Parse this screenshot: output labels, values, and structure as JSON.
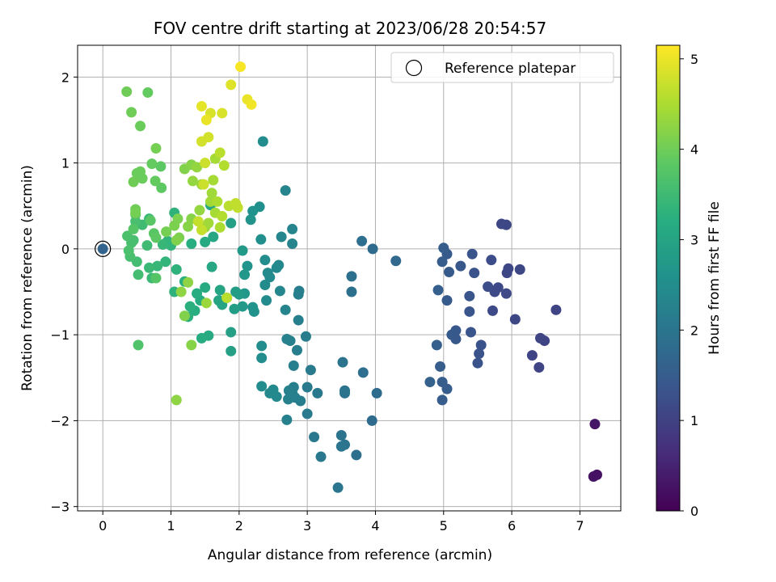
{
  "chart_data": {
    "type": "scatter",
    "title": "FOV centre drift starting at 2023/06/28 20:54:57",
    "xlabel": "Angular distance from reference (arcmin)",
    "ylabel": "Rotation from reference (arcmin)",
    "xlim": [
      -0.37,
      7.6
    ],
    "ylim": [
      -3.05,
      2.37
    ],
    "xticks": [
      0,
      1,
      2,
      3,
      4,
      5,
      6,
      7
    ],
    "yticks": [
      -3,
      -2,
      -1,
      0,
      1,
      2
    ],
    "grid": true,
    "legend": {
      "position": "top-right",
      "label": "Reference platepar"
    },
    "reference_point": {
      "x": 0,
      "y": 0
    },
    "colorbar": {
      "label": "Hours from first FF file",
      "min": 0,
      "max": 5.15,
      "ticks": [
        0,
        1,
        2,
        3,
        4,
        5
      ],
      "colormap": "viridis"
    },
    "points": [
      [
        7.2,
        -2.65,
        0.25
      ],
      [
        7.25,
        -2.63,
        0.25
      ],
      [
        7.22,
        -2.04,
        0.3
      ],
      [
        6.65,
        -0.71,
        1.05
      ],
      [
        6.48,
        -1.07,
        1.05
      ],
      [
        6.42,
        -1.04,
        1.05
      ],
      [
        6.4,
        -1.38,
        1.05
      ],
      [
        6.3,
        -1.24,
        1.05
      ],
      [
        6.12,
        -0.24,
        1.1
      ],
      [
        6.05,
        -0.82,
        1.1
      ],
      [
        5.95,
        -0.23,
        1.1
      ],
      [
        5.93,
        -0.28,
        1.1
      ],
      [
        5.92,
        -0.52,
        1.15
      ],
      [
        5.85,
        0.29,
        1.1
      ],
      [
        5.92,
        0.28,
        1.1
      ],
      [
        5.8,
        -0.45,
        1.15
      ],
      [
        5.75,
        -0.5,
        1.15
      ],
      [
        5.72,
        -0.72,
        1.15
      ],
      [
        5.7,
        -0.13,
        1.2
      ],
      [
        5.65,
        -0.44,
        1.2
      ],
      [
        5.55,
        -1.12,
        1.3
      ],
      [
        5.52,
        -1.22,
        1.3
      ],
      [
        5.5,
        -1.33,
        1.3
      ],
      [
        5.45,
        -0.28,
        1.3
      ],
      [
        5.42,
        -0.06,
        1.35
      ],
      [
        5.4,
        -0.97,
        1.35
      ],
      [
        5.38,
        -0.73,
        1.35
      ],
      [
        5.38,
        -0.55,
        1.35
      ],
      [
        5.25,
        -0.2,
        1.4
      ],
      [
        5.18,
        -0.95,
        1.4
      ],
      [
        5.18,
        -1.05,
        1.4
      ],
      [
        5.12,
        -1.0,
        1.45
      ],
      [
        5.08,
        -0.27,
        1.45
      ],
      [
        5.05,
        -0.6,
        1.45
      ],
      [
        5.05,
        -0.06,
        1.45
      ],
      [
        5.0,
        0.01,
        1.5
      ],
      [
        4.98,
        -0.15,
        1.5
      ],
      [
        5.05,
        -1.63,
        1.5
      ],
      [
        4.98,
        -1.55,
        1.5
      ],
      [
        4.98,
        -1.76,
        1.5
      ],
      [
        4.95,
        -1.37,
        1.5
      ],
      [
        4.92,
        -0.48,
        1.55
      ],
      [
        4.9,
        -1.12,
        1.55
      ],
      [
        4.8,
        -1.55,
        1.6
      ],
      [
        4.3,
        -0.14,
        1.75
      ],
      [
        4.02,
        -1.68,
        1.8
      ],
      [
        3.96,
        0.0,
        1.8
      ],
      [
        3.95,
        -2.0,
        1.8
      ],
      [
        3.82,
        -1.44,
        1.85
      ],
      [
        3.8,
        0.09,
        1.85
      ],
      [
        3.72,
        -2.4,
        1.9
      ],
      [
        3.65,
        -0.32,
        1.9
      ],
      [
        3.65,
        -0.5,
        1.9
      ],
      [
        3.55,
        -1.65,
        1.95
      ],
      [
        3.55,
        -1.68,
        1.95
      ],
      [
        3.55,
        -2.28,
        1.95
      ],
      [
        3.52,
        -1.32,
        1.95
      ],
      [
        3.5,
        -2.17,
        1.95
      ],
      [
        3.5,
        -2.3,
        2.0
      ],
      [
        3.45,
        -2.78,
        2.0
      ],
      [
        3.2,
        -2.42,
        2.05
      ],
      [
        3.15,
        -1.68,
        2.05
      ],
      [
        3.1,
        -2.19,
        2.05
      ],
      [
        3.05,
        -1.41,
        2.1
      ],
      [
        3.0,
        -1.61,
        2.1
      ],
      [
        3.0,
        -1.92,
        2.1
      ],
      [
        2.98,
        -1.02,
        2.15
      ],
      [
        2.9,
        -1.77,
        2.15
      ],
      [
        2.88,
        -0.49,
        2.15
      ],
      [
        2.87,
        -0.53,
        2.2
      ],
      [
        2.87,
        -0.83,
        2.2
      ],
      [
        2.85,
        -1.18,
        2.2
      ],
      [
        2.82,
        -1.73,
        2.2
      ],
      [
        2.8,
        -1.61,
        2.2
      ],
      [
        2.8,
        -1.36,
        2.2
      ],
      [
        2.78,
        -1.68,
        2.25
      ],
      [
        2.75,
        -1.07,
        2.25
      ],
      [
        2.73,
        -1.65,
        2.25
      ],
      [
        2.72,
        -1.75,
        2.25
      ],
      [
        2.7,
        -1.05,
        2.25
      ],
      [
        2.7,
        -1.99,
        2.25
      ],
      [
        2.68,
        -0.71,
        2.3
      ],
      [
        2.78,
        0.23,
        2.3
      ],
      [
        2.78,
        0.06,
        2.3
      ],
      [
        2.68,
        0.68,
        2.3
      ],
      [
        2.62,
        0.14,
        2.35
      ],
      [
        2.6,
        -0.49,
        2.35
      ],
      [
        2.58,
        -0.19,
        2.35
      ],
      [
        2.55,
        -0.22,
        2.4
      ],
      [
        2.55,
        -1.72,
        2.4
      ],
      [
        2.5,
        -1.64,
        2.4
      ],
      [
        2.45,
        -1.68,
        2.4
      ],
      [
        2.45,
        -0.33,
        2.45
      ],
      [
        2.42,
        -0.28,
        2.45
      ],
      [
        2.4,
        -0.6,
        2.45
      ],
      [
        2.38,
        -0.42,
        2.45
      ],
      [
        2.38,
        -0.13,
        2.5
      ],
      [
        2.35,
        1.25,
        2.5
      ],
      [
        2.33,
        -1.6,
        2.5
      ],
      [
        2.33,
        -1.13,
        2.5
      ],
      [
        2.33,
        -1.27,
        2.5
      ],
      [
        2.32,
        0.11,
        2.55
      ],
      [
        2.3,
        0.49,
        2.55
      ],
      [
        2.22,
        -0.73,
        2.6
      ],
      [
        2.2,
        -0.68,
        2.6
      ],
      [
        2.2,
        0.44,
        2.6
      ],
      [
        2.17,
        0.34,
        2.65
      ],
      [
        2.12,
        -0.2,
        2.65
      ],
      [
        2.08,
        -0.52,
        2.7
      ],
      [
        2.08,
        -0.3,
        2.7
      ],
      [
        2.05,
        -0.67,
        2.75
      ],
      [
        2.05,
        -0.02,
        2.75
      ],
      [
        2.0,
        -0.53,
        2.8
      ],
      [
        1.95,
        -0.5,
        2.85
      ],
      [
        1.93,
        -0.7,
        2.85
      ],
      [
        1.88,
        -0.97,
        2.9
      ],
      [
        1.88,
        -1.19,
        2.9
      ],
      [
        1.88,
        0.3,
        2.9
      ],
      [
        1.82,
        -0.57,
        2.95
      ],
      [
        1.75,
        -0.65,
        3.0
      ],
      [
        1.72,
        -0.48,
        3.0
      ],
      [
        1.7,
        -0.6,
        3.0
      ],
      [
        1.62,
        0.14,
        3.05
      ],
      [
        1.6,
        -0.21,
        3.05
      ],
      [
        1.58,
        0.51,
        3.05
      ],
      [
        1.55,
        -1.01,
        3.1
      ],
      [
        1.5,
        -0.45,
        3.1
      ],
      [
        1.5,
        0.08,
        3.1
      ],
      [
        1.45,
        -1.04,
        3.15
      ],
      [
        1.43,
        -0.6,
        3.15
      ],
      [
        1.38,
        -0.52,
        3.15
      ],
      [
        1.35,
        -0.72,
        3.2
      ],
      [
        1.3,
        0.06,
        3.2
      ],
      [
        1.28,
        -0.67,
        3.25
      ],
      [
        1.25,
        -0.79,
        3.25
      ],
      [
        1.2,
        -0.38,
        3.25
      ],
      [
        1.08,
        -0.24,
        3.3
      ],
      [
        1.05,
        -0.5,
        3.3
      ],
      [
        1.05,
        0.42,
        3.3
      ],
      [
        1.0,
        0.04,
        3.35
      ],
      [
        0.95,
        0.09,
        3.35
      ],
      [
        0.92,
        -0.15,
        3.35
      ],
      [
        0.88,
        0.05,
        3.4
      ],
      [
        0.8,
        -0.2,
        3.4
      ],
      [
        0.72,
        -0.34,
        3.45
      ],
      [
        0.68,
        0.35,
        3.45
      ],
      [
        0.68,
        -0.22,
        3.45
      ],
      [
        0.65,
        0.04,
        3.5
      ],
      [
        0.58,
        0.28,
        3.5
      ],
      [
        0.52,
        -0.3,
        3.55
      ],
      [
        0.5,
        -0.15,
        3.55
      ],
      [
        0.48,
        0.32,
        3.6
      ],
      [
        0.45,
        0.1,
        3.6
      ],
      [
        0.42,
        0.07,
        3.6
      ],
      [
        0.4,
        -0.09,
        3.6
      ],
      [
        0.38,
        -0.02,
        3.65
      ],
      [
        0.36,
        0.15,
        3.65
      ],
      [
        0.52,
        -1.12,
        3.7
      ],
      [
        0.48,
        0.4,
        3.7
      ],
      [
        0.45,
        0.23,
        3.75
      ],
      [
        0.78,
        -0.34,
        3.75
      ],
      [
        0.75,
        0.18,
        3.8
      ],
      [
        0.7,
        0.33,
        3.8
      ],
      [
        0.78,
        0.13,
        3.85
      ],
      [
        0.86,
        0.71,
        3.85
      ],
      [
        0.85,
        0.96,
        3.85
      ],
      [
        0.77,
        0.79,
        3.9
      ],
      [
        0.72,
        0.99,
        3.9
      ],
      [
        0.66,
        1.82,
        3.9
      ],
      [
        0.58,
        0.82,
        3.95
      ],
      [
        0.55,
        0.9,
        3.95
      ],
      [
        0.55,
        1.43,
        3.95
      ],
      [
        0.5,
        0.88,
        3.95
      ],
      [
        0.48,
        0.46,
        4.0
      ],
      [
        0.45,
        0.78,
        4.0
      ],
      [
        0.42,
        1.59,
        4.0
      ],
      [
        0.35,
        1.83,
        4.0
      ],
      [
        0.48,
        0.42,
        4.05
      ],
      [
        0.78,
        1.17,
        4.05
      ],
      [
        0.93,
        0.2,
        4.05
      ],
      [
        1.05,
        0.27,
        4.1
      ],
      [
        1.1,
        0.35,
        4.1
      ],
      [
        1.12,
        0.13,
        4.1
      ],
      [
        1.08,
        0.1,
        4.15
      ],
      [
        1.2,
        0.93,
        4.15
      ],
      [
        1.2,
        -0.78,
        4.15
      ],
      [
        1.25,
        0.26,
        4.2
      ],
      [
        1.3,
        0.35,
        4.2
      ],
      [
        1.3,
        0.98,
        4.2
      ],
      [
        1.3,
        -1.12,
        4.2
      ],
      [
        1.08,
        -1.76,
        4.25
      ],
      [
        1.15,
        -0.5,
        4.25
      ],
      [
        1.25,
        -0.39,
        4.25
      ],
      [
        1.32,
        0.79,
        4.3
      ],
      [
        1.38,
        0.95,
        4.3
      ],
      [
        1.42,
        0.45,
        4.3
      ],
      [
        1.45,
        0.75,
        4.35
      ],
      [
        1.5,
        0.25,
        4.35
      ],
      [
        1.52,
        -0.63,
        4.35
      ],
      [
        1.55,
        0.3,
        4.4
      ],
      [
        1.58,
        0.55,
        4.4
      ],
      [
        1.6,
        0.65,
        4.4
      ],
      [
        1.62,
        0.8,
        4.45
      ],
      [
        1.65,
        1.05,
        4.45
      ],
      [
        1.65,
        0.42,
        4.45
      ],
      [
        1.68,
        0.55,
        4.5
      ],
      [
        1.72,
        0.25,
        4.5
      ],
      [
        1.75,
        0.38,
        4.55
      ],
      [
        1.78,
        0.97,
        4.55
      ],
      [
        1.72,
        1.12,
        4.6
      ],
      [
        1.85,
        0.5,
        4.6
      ],
      [
        1.82,
        -0.57,
        4.6
      ],
      [
        1.95,
        0.53,
        4.65
      ],
      [
        1.98,
        0.48,
        4.65
      ],
      [
        1.4,
        0.32,
        4.7
      ],
      [
        1.45,
        0.22,
        4.7
      ],
      [
        1.48,
        0.75,
        4.75
      ],
      [
        1.5,
        1.0,
        4.75
      ],
      [
        1.45,
        1.25,
        4.8
      ],
      [
        1.55,
        1.3,
        4.8
      ],
      [
        1.58,
        1.58,
        4.85
      ],
      [
        1.75,
        1.58,
        4.85
      ],
      [
        1.88,
        1.91,
        4.9
      ],
      [
        1.45,
        1.66,
        4.95
      ],
      [
        1.52,
        1.5,
        5.0
      ],
      [
        2.12,
        1.74,
        5.0
      ],
      [
        2.18,
        1.68,
        5.05
      ],
      [
        2.02,
        2.12,
        5.1
      ]
    ]
  }
}
